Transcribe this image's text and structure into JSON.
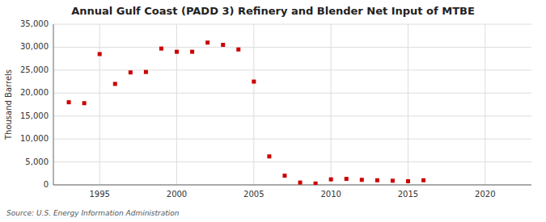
{
  "chart_data": {
    "type": "scatter",
    "title": "Annual Gulf Coast (PADD 3) Refinery and Blender Net Input of MTBE",
    "y_label": "Thousand Barrels",
    "source": "Source: U.S. Energy Information Administration",
    "x": [
      1993,
      1994,
      1995,
      1996,
      1997,
      1998,
      1999,
      2000,
      2001,
      2002,
      2003,
      2004,
      2005,
      2006,
      2007,
      2008,
      2009,
      2010,
      2011,
      2012,
      2013,
      2014,
      2015,
      2016
    ],
    "values": [
      18000,
      17800,
      28500,
      22000,
      24500,
      24600,
      29700,
      29000,
      29000,
      31000,
      30500,
      29500,
      22500,
      6200,
      2000,
      500,
      300,
      1200,
      1300,
      1100,
      1000,
      900,
      800,
      1000
    ],
    "color": "#CC0000",
    "marker": "square",
    "xlim": [
      1992,
      2023
    ],
    "xticks": [
      1995,
      2000,
      2005,
      2010,
      2015,
      2020
    ],
    "ylim": [
      0,
      35000
    ],
    "yticks": [
      0,
      {
        "value": 5000,
        "label": "5,000"
      },
      {
        "value": 10000,
        "label": "10,000"
      },
      {
        "value": 15000,
        "label": "15,000"
      },
      {
        "value": 20000,
        "label": "20,000"
      },
      {
        "value": 25000,
        "label": "25,000"
      },
      {
        "value": 30000,
        "label": "30,000"
      },
      {
        "value": 35000,
        "label": "35,000"
      }
    ],
    "grid": true
  }
}
